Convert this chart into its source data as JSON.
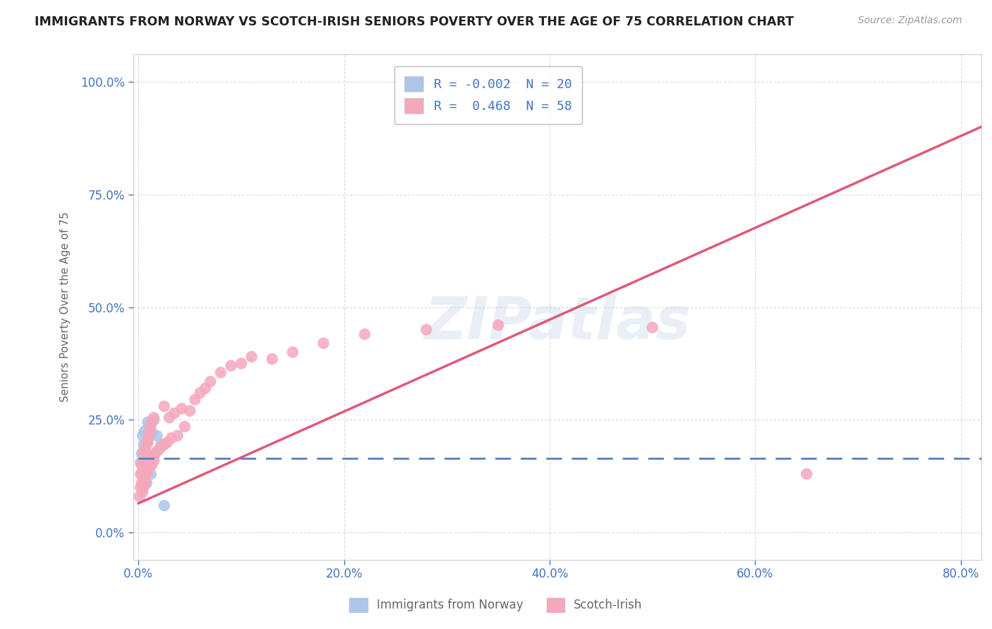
{
  "title": "IMMIGRANTS FROM NORWAY VS SCOTCH-IRISH SENIORS POVERTY OVER THE AGE OF 75 CORRELATION CHART",
  "source": "Source: ZipAtlas.com",
  "ylabel": "Seniors Poverty Over the Age of 75",
  "xlim": [
    -0.005,
    0.82
  ],
  "ylim": [
    -0.06,
    1.06
  ],
  "norway_R": -0.002,
  "norway_N": 20,
  "scotch_R": 0.468,
  "scotch_N": 58,
  "norway_color": "#adc6e8",
  "scotch_color": "#f4a8bc",
  "norway_line_color": "#5580c0",
  "scotch_line_color": "#e05878",
  "legend_label_norway": "Immigrants from Norway",
  "legend_label_scotch": "Scotch-Irish",
  "watermark": "ZIPatlas",
  "title_color": "#222222",
  "axis_color": "#4472c4",
  "grid_color": "#cccccc",
  "background_color": "#ffffff",
  "norway_x": [
    0.002,
    0.003,
    0.004,
    0.004,
    0.005,
    0.005,
    0.006,
    0.006,
    0.007,
    0.007,
    0.008,
    0.009,
    0.01,
    0.011,
    0.012,
    0.013,
    0.015,
    0.018,
    0.022,
    0.025
  ],
  "norway_y": [
    0.155,
    0.175,
    0.13,
    0.215,
    0.155,
    0.195,
    0.155,
    0.225,
    0.135,
    0.175,
    0.11,
    0.245,
    0.235,
    0.15,
    0.13,
    0.22,
    0.25,
    0.215,
    0.195,
    0.06
  ],
  "scotch_x": [
    0.001,
    0.002,
    0.002,
    0.003,
    0.003,
    0.004,
    0.004,
    0.005,
    0.005,
    0.005,
    0.006,
    0.006,
    0.007,
    0.007,
    0.008,
    0.008,
    0.009,
    0.009,
    0.01,
    0.01,
    0.011,
    0.011,
    0.012,
    0.012,
    0.013,
    0.013,
    0.015,
    0.015,
    0.016,
    0.018,
    0.02,
    0.022,
    0.025,
    0.025,
    0.028,
    0.03,
    0.032,
    0.035,
    0.038,
    0.042,
    0.045,
    0.05,
    0.055,
    0.06,
    0.065,
    0.07,
    0.08,
    0.09,
    0.1,
    0.11,
    0.13,
    0.15,
    0.18,
    0.22,
    0.28,
    0.35,
    0.5,
    0.65
  ],
  "scotch_y": [
    0.08,
    0.1,
    0.13,
    0.11,
    0.15,
    0.09,
    0.16,
    0.1,
    0.14,
    0.18,
    0.11,
    0.175,
    0.12,
    0.19,
    0.13,
    0.195,
    0.14,
    0.2,
    0.15,
    0.21,
    0.165,
    0.225,
    0.155,
    0.235,
    0.15,
    0.245,
    0.16,
    0.255,
    0.175,
    0.18,
    0.185,
    0.19,
    0.195,
    0.28,
    0.2,
    0.255,
    0.21,
    0.265,
    0.215,
    0.275,
    0.235,
    0.27,
    0.295,
    0.31,
    0.32,
    0.335,
    0.355,
    0.37,
    0.375,
    0.39,
    0.385,
    0.4,
    0.42,
    0.44,
    0.45,
    0.46,
    0.455,
    0.13
  ],
  "scotch_line_x0": 0.0,
  "scotch_line_y0": 0.065,
  "scotch_line_x1": 0.82,
  "scotch_line_y1": 0.9,
  "norway_line_x0": 0.0,
  "norway_line_y0": 0.165,
  "norway_line_x1": 0.82,
  "norway_line_y1": 0.165
}
